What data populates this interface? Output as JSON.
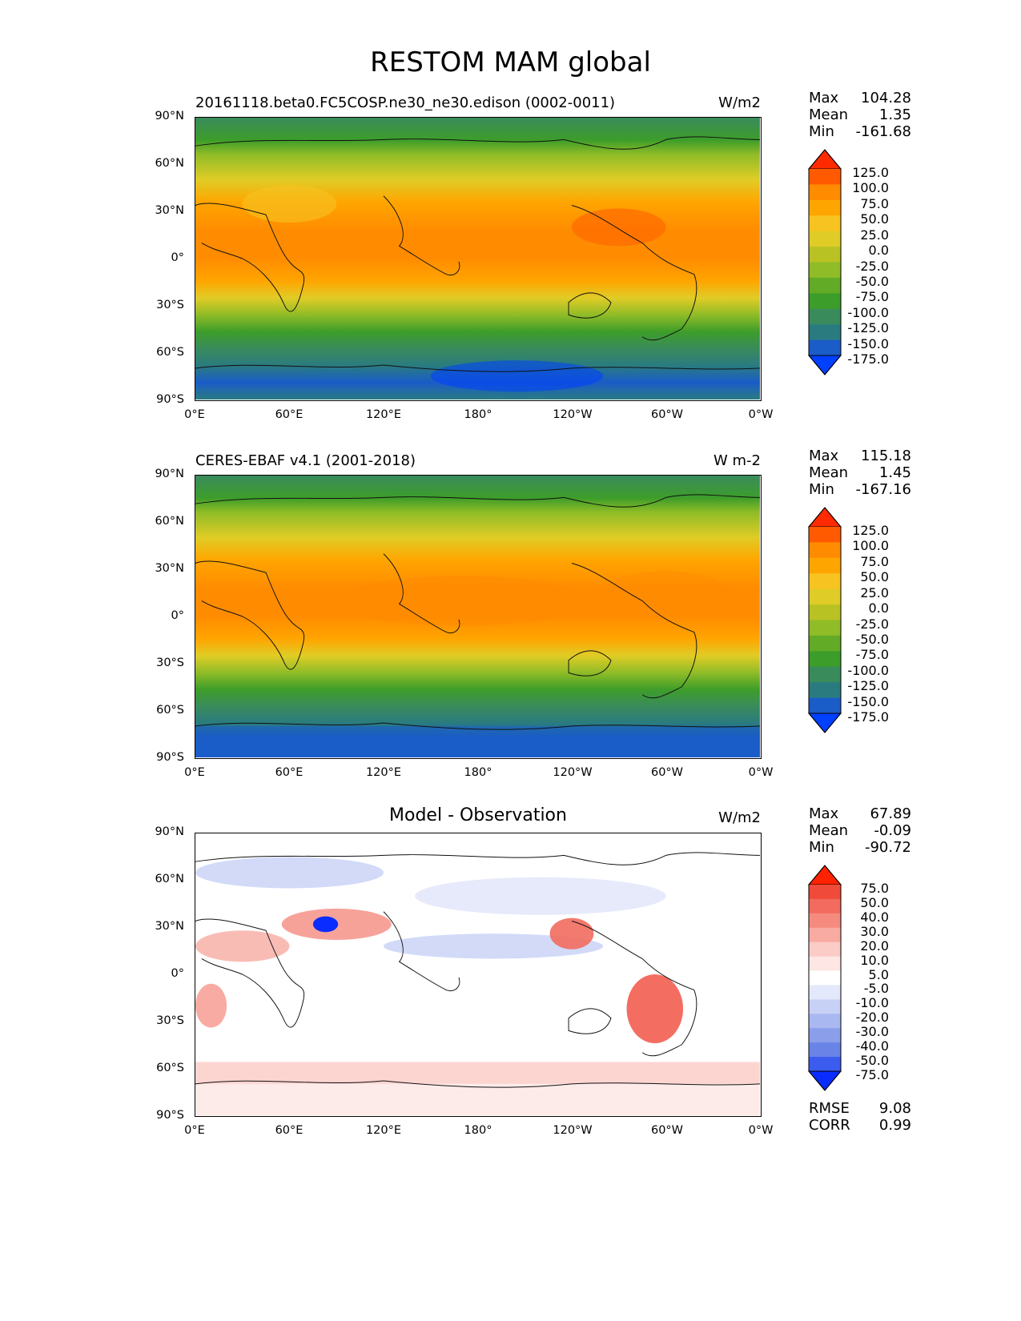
{
  "figure": {
    "title": "RESTOM MAM global"
  },
  "axes": {
    "lat_ticks": [
      "90°N",
      "60°N",
      "30°N",
      "0°",
      "30°S",
      "60°S",
      "90°S"
    ],
    "lon_ticks": [
      "0°E",
      "60°E",
      "120°E",
      "180°",
      "120°W",
      "60°W",
      "0°W"
    ]
  },
  "panels": [
    {
      "id": "model",
      "title_left": "20161118.beta0.FC5COSP.ne30_ne30.edison (0002-0011)",
      "title_center": "",
      "units": "W/m2",
      "stats": {
        "max_label": "Max",
        "max": "104.28",
        "mean_label": "Mean",
        "mean": "1.35",
        "min_label": "Min",
        "min": "-161.68"
      },
      "colorbar": {
        "labels": [
          "125.0",
          "100.0",
          "75.0",
          "50.0",
          "25.0",
          "0.0",
          "-25.0",
          "-50.0",
          "-75.0",
          "-100.0",
          "-125.0",
          "-150.0",
          "-175.0"
        ],
        "colors": [
          "#ff2a00",
          "#ff5a00",
          "#ff8c00",
          "#ffa500",
          "#f7c321",
          "#e0cc26",
          "#b9c223",
          "#8fbc27",
          "#62ab26",
          "#3d9d2a",
          "#3a8b5c",
          "#2a7b80",
          "#1a5cc8",
          "#0040ff"
        ]
      }
    },
    {
      "id": "obs",
      "title_left": "CERES-EBAF v4.1 (2001-2018)",
      "title_center": "",
      "units": "W m-2",
      "stats": {
        "max_label": "Max",
        "max": "115.18",
        "mean_label": "Mean",
        "mean": "1.45",
        "min_label": "Min",
        "min": "-167.16"
      },
      "colorbar": {
        "labels": [
          "125.0",
          "100.0",
          "75.0",
          "50.0",
          "25.0",
          "0.0",
          "-25.0",
          "-50.0",
          "-75.0",
          "-100.0",
          "-125.0",
          "-150.0",
          "-175.0"
        ],
        "colors": [
          "#ff2a00",
          "#ff5a00",
          "#ff8c00",
          "#ffa500",
          "#f7c321",
          "#e0cc26",
          "#b9c223",
          "#8fbc27",
          "#62ab26",
          "#3d9d2a",
          "#3a8b5c",
          "#2a7b80",
          "#1a5cc8",
          "#0040ff"
        ]
      }
    },
    {
      "id": "diff",
      "title_left": "",
      "title_center": "Model - Observation",
      "units": "W/m2",
      "stats": {
        "max_label": "Max",
        "max": "67.89",
        "mean_label": "Mean",
        "mean": "-0.09",
        "min_label": "Min",
        "min": "-90.72"
      },
      "colorbar": {
        "labels": [
          "75.0",
          "50.0",
          "40.0",
          "30.0",
          "20.0",
          "10.0",
          "5.0",
          "-5.0",
          "-10.0",
          "-20.0",
          "-30.0",
          "-40.0",
          "-50.0",
          "-75.0"
        ],
        "colors": [
          "#ff2200",
          "#f04a3a",
          "#f26b5e",
          "#f58b7f",
          "#f8aba2",
          "#fbcbc5",
          "#fde6e3",
          "#ffffff",
          "#e3e8fb",
          "#c7d1f6",
          "#a9b8f0",
          "#8a9eea",
          "#6984e6",
          "#3c5cf0",
          "#0a2cff"
        ]
      },
      "metrics": {
        "rmse_label": "RMSE",
        "rmse": "9.08",
        "corr_label": "CORR",
        "corr": "0.99"
      }
    }
  ]
}
